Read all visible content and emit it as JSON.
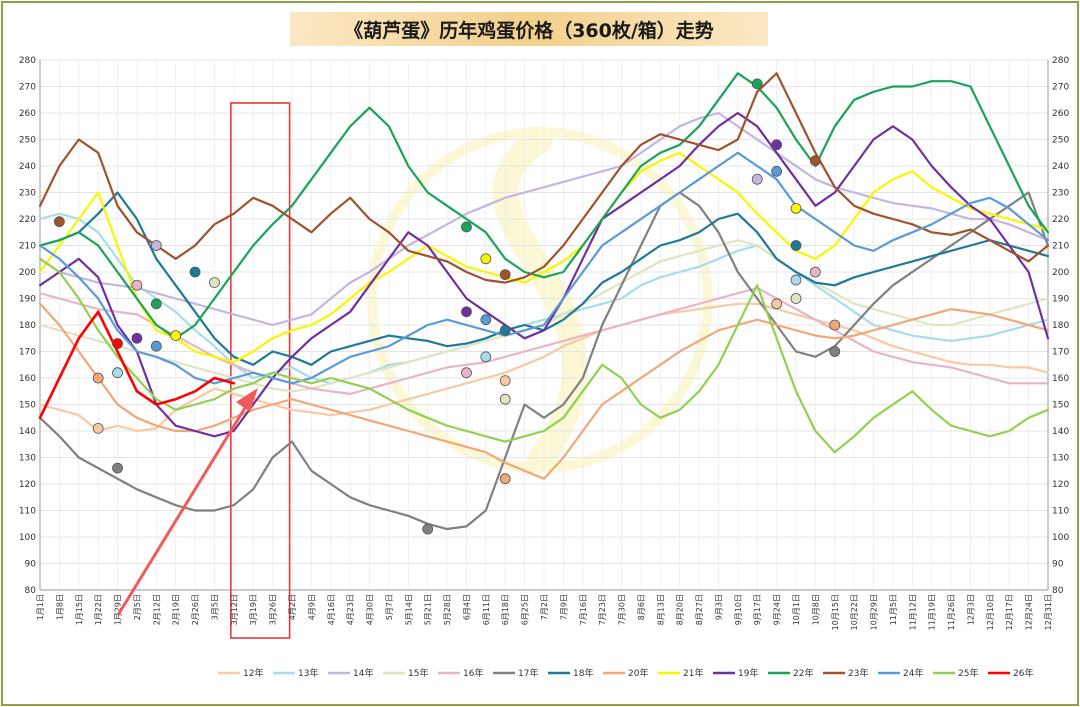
{
  "chart_data": {
    "type": "line",
    "title": "《葫芦蛋》历年鸡蛋价格（360枚/箱）走势",
    "ylim": [
      80,
      280
    ],
    "yticks": [
      80,
      90,
      100,
      110,
      120,
      130,
      140,
      150,
      160,
      170,
      180,
      190,
      200,
      210,
      220,
      230,
      240,
      250,
      260,
      270,
      280
    ],
    "x_tick_labels": [
      "1月1日",
      "1月8日",
      "1月15日",
      "1月22日",
      "1月29日",
      "2月5日",
      "2月12日",
      "2月19日",
      "2月26日",
      "3月5日",
      "3月12日",
      "3月19日",
      "3月26日",
      "4月2日",
      "4月9日",
      "4月16日",
      "4月23日",
      "4月30日",
      "5月7日",
      "5月14日",
      "5月21日",
      "5月28日",
      "6月4日",
      "6月11日",
      "6月18日",
      "6月25日",
      "7月2日",
      "7月9日",
      "7月16日",
      "7月23日",
      "7月30日",
      "8月6日",
      "8月13日",
      "8月20日",
      "8月27日",
      "9月3日",
      "9月10日",
      "9月17日",
      "9月24日",
      "10月1日",
      "10月8日",
      "10月15日",
      "10月22日",
      "10月29日",
      "11月5日",
      "11月12日",
      "11月19日",
      "11月26日",
      "12月3日",
      "12月10日",
      "12月17日",
      "12月24日",
      "12月31日"
    ],
    "legend_position": "bottom",
    "grid": true,
    "highlight_box_x_range": [
      "3月12日",
      "3月26日"
    ],
    "series": [
      {
        "name": "12年",
        "color": "#f7c9a4",
        "values": [
          150,
          148,
          146,
          140,
          142,
          140,
          141,
          148,
          152,
          156,
          154,
          152,
          150,
          148,
          147,
          146,
          147,
          148,
          150,
          152,
          154,
          156,
          158,
          160,
          162,
          165,
          168,
          172,
          175,
          178,
          180,
          182,
          184,
          185,
          186,
          187,
          188,
          188,
          186,
          184,
          182,
          180,
          178,
          175,
          172,
          170,
          168,
          166,
          165,
          165,
          164,
          164,
          162
        ]
      },
      {
        "name": "13年",
        "color": "#a8dde8",
        "values": [
          220,
          222,
          220,
          215,
          205,
          195,
          190,
          185,
          178,
          172,
          165,
          160,
          162,
          164,
          160,
          158,
          160,
          162,
          165,
          166,
          168,
          170,
          172,
          175,
          178,
          180,
          182,
          184,
          186,
          188,
          190,
          195,
          198,
          200,
          202,
          205,
          208,
          210,
          205,
          200,
          195,
          190,
          185,
          180,
          178,
          176,
          175,
          174,
          175,
          176,
          178,
          180,
          182
        ]
      },
      {
        "name": "14年",
        "color": "#c5b6e0",
        "values": [
          205,
          200,
          198,
          196,
          195,
          194,
          192,
          190,
          188,
          186,
          184,
          182,
          180,
          182,
          184,
          190,
          196,
          200,
          205,
          210,
          214,
          218,
          222,
          225,
          228,
          230,
          232,
          234,
          236,
          238,
          240,
          245,
          250,
          255,
          258,
          260,
          255,
          250,
          245,
          240,
          235,
          232,
          230,
          228,
          226,
          225,
          224,
          222,
          220,
          220,
          218,
          215,
          212
        ]
      },
      {
        "name": "15年",
        "color": "#dde6c0",
        "values": [
          180,
          178,
          176,
          174,
          172,
          170,
          168,
          166,
          164,
          162,
          160,
          158,
          156,
          155,
          156,
          158,
          160,
          162,
          164,
          166,
          168,
          170,
          172,
          174,
          176,
          178,
          180,
          184,
          188,
          192,
          196,
          200,
          204,
          206,
          208,
          210,
          212,
          210,
          205,
          200,
          196,
          192,
          188,
          186,
          184,
          182,
          180,
          180,
          182,
          184,
          186,
          188,
          190
        ]
      },
      {
        "name": "16年",
        "color": "#e8b4c8",
        "values": [
          192,
          190,
          188,
          186,
          185,
          184,
          180,
          176,
          172,
          168,
          165,
          162,
          160,
          158,
          156,
          155,
          154,
          156,
          158,
          160,
          162,
          164,
          165,
          166,
          168,
          170,
          172,
          174,
          176,
          178,
          180,
          182,
          184,
          186,
          188,
          190,
          192,
          194,
          190,
          186,
          182,
          178,
          174,
          170,
          168,
          166,
          165,
          164,
          162,
          160,
          158,
          158,
          158
        ]
      },
      {
        "name": "17年",
        "color": "#808080",
        "values": [
          145,
          138,
          130,
          126,
          122,
          118,
          115,
          112,
          110,
          110,
          112,
          118,
          130,
          136,
          125,
          120,
          115,
          112,
          110,
          108,
          105,
          103,
          104,
          110,
          130,
          150,
          145,
          150,
          160,
          180,
          195,
          210,
          225,
          230,
          225,
          215,
          200,
          190,
          180,
          170,
          168,
          172,
          180,
          188,
          195,
          200,
          205,
          210,
          215,
          220,
          225,
          230,
          210
        ]
      },
      {
        "name": "18年",
        "color": "#1f7a99",
        "values": [
          210,
          212,
          215,
          222,
          230,
          220,
          205,
          195,
          185,
          175,
          168,
          165,
          170,
          168,
          165,
          170,
          172,
          174,
          176,
          175,
          174,
          172,
          173,
          175,
          178,
          180,
          178,
          182,
          188,
          196,
          200,
          205,
          210,
          212,
          215,
          220,
          222,
          215,
          205,
          200,
          196,
          195,
          198,
          200,
          202,
          204,
          206,
          208,
          210,
          212,
          210,
          208,
          206
        ]
      },
      {
        "name": "20年",
        "color": "#f0a878",
        "values": [
          188,
          180,
          170,
          160,
          150,
          145,
          142,
          140,
          140,
          142,
          145,
          148,
          150,
          152,
          150,
          148,
          146,
          144,
          142,
          140,
          138,
          136,
          134,
          132,
          128,
          125,
          122,
          130,
          140,
          150,
          155,
          160,
          165,
          170,
          174,
          178,
          180,
          182,
          180,
          178,
          176,
          175,
          176,
          178,
          180,
          182,
          184,
          186,
          185,
          184,
          182,
          180,
          178
        ]
      },
      {
        "name": "21年",
        "color": "#f7f700",
        "values": [
          200,
          210,
          220,
          230,
          210,
          190,
          178,
          175,
          170,
          168,
          166,
          170,
          175,
          178,
          180,
          184,
          190,
          196,
          200,
          205,
          210,
          206,
          202,
          200,
          198,
          196,
          200,
          204,
          210,
          220,
          230,
          238,
          242,
          245,
          240,
          235,
          230,
          222,
          215,
          208,
          205,
          210,
          220,
          230,
          235,
          238,
          232,
          228,
          224,
          222,
          220,
          218,
          216
        ]
      },
      {
        "name": "19年",
        "color": "#7030a0",
        "values": [
          195,
          200,
          205,
          198,
          180,
          170,
          150,
          142,
          140,
          138,
          140,
          150,
          160,
          168,
          175,
          180,
          185,
          195,
          205,
          215,
          210,
          200,
          190,
          185,
          180,
          175,
          178,
          190,
          205,
          220,
          225,
          230,
          235,
          240,
          248,
          255,
          260,
          255,
          245,
          235,
          225,
          230,
          240,
          250,
          255,
          250,
          240,
          232,
          225,
          220,
          210,
          200,
          175
        ]
      },
      {
        "name": "22年",
        "color": "#1aa35a",
        "values": [
          210,
          212,
          215,
          210,
          200,
          190,
          180,
          175,
          180,
          190,
          200,
          210,
          218,
          225,
          235,
          245,
          255,
          262,
          255,
          240,
          230,
          225,
          220,
          215,
          205,
          200,
          198,
          200,
          210,
          220,
          230,
          240,
          245,
          248,
          255,
          265,
          275,
          270,
          262,
          250,
          240,
          255,
          265,
          268,
          270,
          270,
          272,
          272,
          270,
          255,
          240,
          225,
          215
        ]
      },
      {
        "name": "23年",
        "color": "#a0522d",
        "values": [
          225,
          240,
          250,
          245,
          225,
          215,
          210,
          205,
          210,
          218,
          222,
          228,
          225,
          220,
          215,
          222,
          228,
          220,
          215,
          208,
          206,
          204,
          200,
          197,
          196,
          198,
          202,
          210,
          220,
          230,
          240,
          248,
          252,
          250,
          248,
          246,
          250,
          268,
          275,
          260,
          245,
          232,
          225,
          222,
          220,
          218,
          215,
          214,
          216,
          212,
          208,
          204,
          210
        ]
      },
      {
        "name": "24年",
        "color": "#5b9bd5",
        "values": [
          210,
          205,
          198,
          190,
          178,
          170,
          168,
          165,
          160,
          158,
          160,
          162,
          160,
          158,
          160,
          164,
          168,
          170,
          172,
          176,
          180,
          182,
          180,
          178,
          176,
          178,
          180,
          190,
          200,
          210,
          215,
          220,
          225,
          230,
          235,
          240,
          245,
          240,
          235,
          225,
          220,
          215,
          210,
          208,
          212,
          215,
          218,
          222,
          226,
          228,
          224,
          218,
          212
        ]
      },
      {
        "name": "25年",
        "color": "#92d050",
        "values": [
          205,
          200,
          190,
          178,
          168,
          160,
          152,
          148,
          150,
          152,
          156,
          158,
          162,
          160,
          158,
          160,
          158,
          156,
          152,
          148,
          145,
          142,
          140,
          138,
          136,
          138,
          140,
          145,
          155,
          165,
          160,
          150,
          145,
          148,
          155,
          165,
          180,
          195,
          175,
          155,
          140,
          132,
          138,
          145,
          150,
          155,
          148,
          142,
          140,
          138,
          140,
          145,
          148
        ]
      },
      {
        "name": "26年",
        "color": "#ff0000",
        "values": [
          145,
          160,
          175,
          185,
          170,
          155,
          150,
          152,
          155,
          160,
          158
        ]
      }
    ],
    "point_markers": [
      {
        "series": "23年",
        "x": 1,
        "y": 219
      },
      {
        "series": "20年",
        "x": 3,
        "y": 160
      },
      {
        "series": "26年",
        "x": 4,
        "y": 173
      },
      {
        "series": "13年",
        "x": 4,
        "y": 162
      },
      {
        "series": "14年",
        "x": 6,
        "y": 210
      },
      {
        "series": "16年",
        "x": 5,
        "y": 195
      },
      {
        "series": "22年",
        "x": 6,
        "y": 188
      },
      {
        "series": "19年",
        "x": 5,
        "y": 175
      },
      {
        "series": "24年",
        "x": 6,
        "y": 172
      },
      {
        "series": "21年",
        "x": 7,
        "y": 176
      },
      {
        "series": "18年",
        "x": 8,
        "y": 200
      },
      {
        "series": "15年",
        "x": 9,
        "y": 196
      },
      {
        "series": "17年",
        "x": 4,
        "y": 126
      },
      {
        "series": "12年",
        "x": 3,
        "y": 141
      },
      {
        "series": "22年",
        "x": 22,
        "y": 217
      },
      {
        "series": "21年",
        "x": 23,
        "y": 205
      },
      {
        "series": "23年",
        "x": 24,
        "y": 199
      },
      {
        "series": "19年",
        "x": 22,
        "y": 185
      },
      {
        "series": "24年",
        "x": 23,
        "y": 182
      },
      {
        "series": "18年",
        "x": 24,
        "y": 178
      },
      {
        "series": "13年",
        "x": 23,
        "y": 168
      },
      {
        "series": "16年",
        "x": 22,
        "y": 162
      },
      {
        "series": "12年",
        "x": 24,
        "y": 159
      },
      {
        "series": "15年",
        "x": 24,
        "y": 152
      },
      {
        "series": "20年",
        "x": 24,
        "y": 122
      },
      {
        "series": "17年",
        "x": 20,
        "y": 103
      },
      {
        "series": "22年",
        "x": 37,
        "y": 271
      },
      {
        "series": "19年",
        "x": 38,
        "y": 248
      },
      {
        "series": "14年",
        "x": 37,
        "y": 235
      },
      {
        "series": "24年",
        "x": 38,
        "y": 238
      },
      {
        "series": "21年",
        "x": 39,
        "y": 224
      },
      {
        "series": "18年",
        "x": 39,
        "y": 210
      },
      {
        "series": "23年",
        "x": 40,
        "y": 242
      },
      {
        "series": "16年",
        "x": 40,
        "y": 200
      },
      {
        "series": "13年",
        "x": 39,
        "y": 197
      },
      {
        "series": "15年",
        "x": 39,
        "y": 190
      },
      {
        "series": "12年",
        "x": 38,
        "y": 188
      },
      {
        "series": "20年",
        "x": 41,
        "y": 180
      },
      {
        "series": "17年",
        "x": 41,
        "y": 170
      }
    ]
  }
}
